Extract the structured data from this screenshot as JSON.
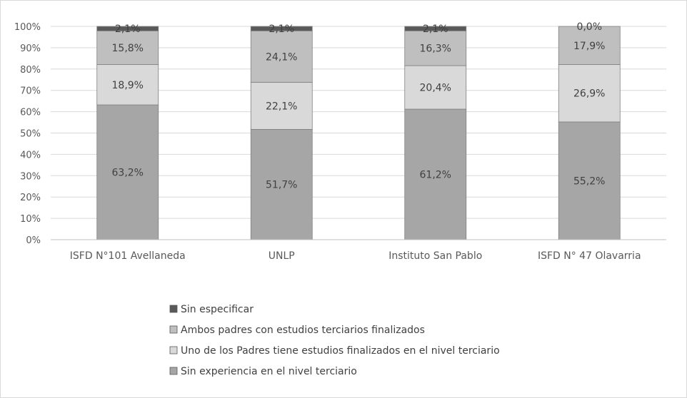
{
  "chart_data": {
    "type": "bar",
    "stacked": true,
    "percent_stacked": true,
    "categories": [
      "ISFD N°101 Avellaneda",
      "UNLP",
      "Instituto San Pablo",
      "ISFD N° 47 Olavarria"
    ],
    "y_ticks": [
      "0%",
      "10%",
      "20%",
      "30%",
      "40%",
      "50%",
      "60%",
      "70%",
      "80%",
      "90%",
      "100%"
    ],
    "ylim": [
      0,
      100
    ],
    "grid": true,
    "legend_position": "bottom",
    "series": [
      {
        "name": "Sin experiencia en el nivel terciario",
        "values": [
          63.2,
          51.7,
          61.2,
          55.2
        ],
        "labels": [
          "63,2%",
          "51,7%",
          "61,2%",
          "55,2%"
        ],
        "color": "#a6a6a6"
      },
      {
        "name": "Uno de los Padres tiene estudios finalizados en el nivel terciario",
        "values": [
          18.9,
          22.1,
          20.4,
          26.9
        ],
        "labels": [
          "18,9%",
          "22,1%",
          "20,4%",
          "26,9%"
        ],
        "color": "#d9d9d9"
      },
      {
        "name": "Ambos padres con estudios terciarios finalizados",
        "values": [
          15.8,
          24.1,
          16.3,
          17.9
        ],
        "labels": [
          "15,8%",
          "24,1%",
          "16,3%",
          "17,9%"
        ],
        "color": "#bfbfbf"
      },
      {
        "name": "Sin especificar",
        "values": [
          2.1,
          2.1,
          2.1,
          0.0
        ],
        "labels": [
          "2,1%",
          "2,1%",
          "2,1%",
          "0,0%"
        ],
        "color": "#595959"
      }
    ]
  }
}
